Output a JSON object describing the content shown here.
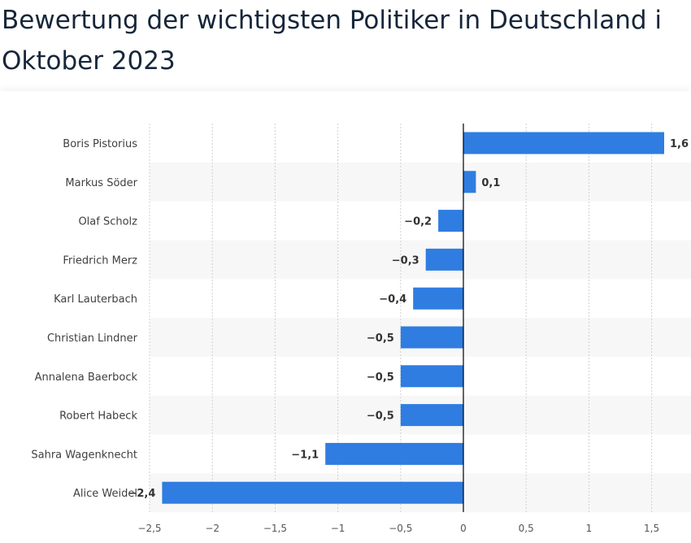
{
  "header": {
    "title_line1": "Bewertung der wichtigsten Politiker in Deutschland i",
    "title_line2": "Oktober 2023"
  },
  "colors": {
    "bar": "#2f7de1",
    "stripe": "#f7f7f7",
    "grid": "#d0d0d0",
    "axis": "#000000"
  },
  "chart_data": {
    "type": "bar",
    "orientation": "horizontal",
    "title": "Bewertung der wichtigsten Politiker in Deutschland i Oktober 2023",
    "categories": [
      "Boris Pistorius",
      "Markus Söder",
      "Olaf Scholz",
      "Friedrich Merz",
      "Karl Lauterbach",
      "Christian Lindner",
      "Annalena Baerbock",
      "Robert Habeck",
      "Sahra Wagenknecht",
      "Alice Weidel"
    ],
    "values": [
      1.6,
      0.1,
      -0.2,
      -0.3,
      -0.4,
      -0.5,
      -0.5,
      -0.5,
      -1.1,
      -2.4
    ],
    "value_labels": [
      "1,6",
      "0,1",
      "−0,2",
      "−0,3",
      "−0,4",
      "−0,5",
      "−0,5",
      "−0,5",
      "−1,1",
      "−2,4"
    ],
    "xticks": [
      -2.5,
      -2,
      -1.5,
      -1,
      -0.5,
      0,
      0.5,
      1,
      1.5
    ],
    "xtick_labels": [
      "−2,5",
      "−2",
      "−1,5",
      "−1",
      "−0,5",
      "0",
      "0,5",
      "1",
      "1,5"
    ],
    "xlim": [
      -2.5,
      1.75
    ],
    "grid": true,
    "legend": "none"
  }
}
